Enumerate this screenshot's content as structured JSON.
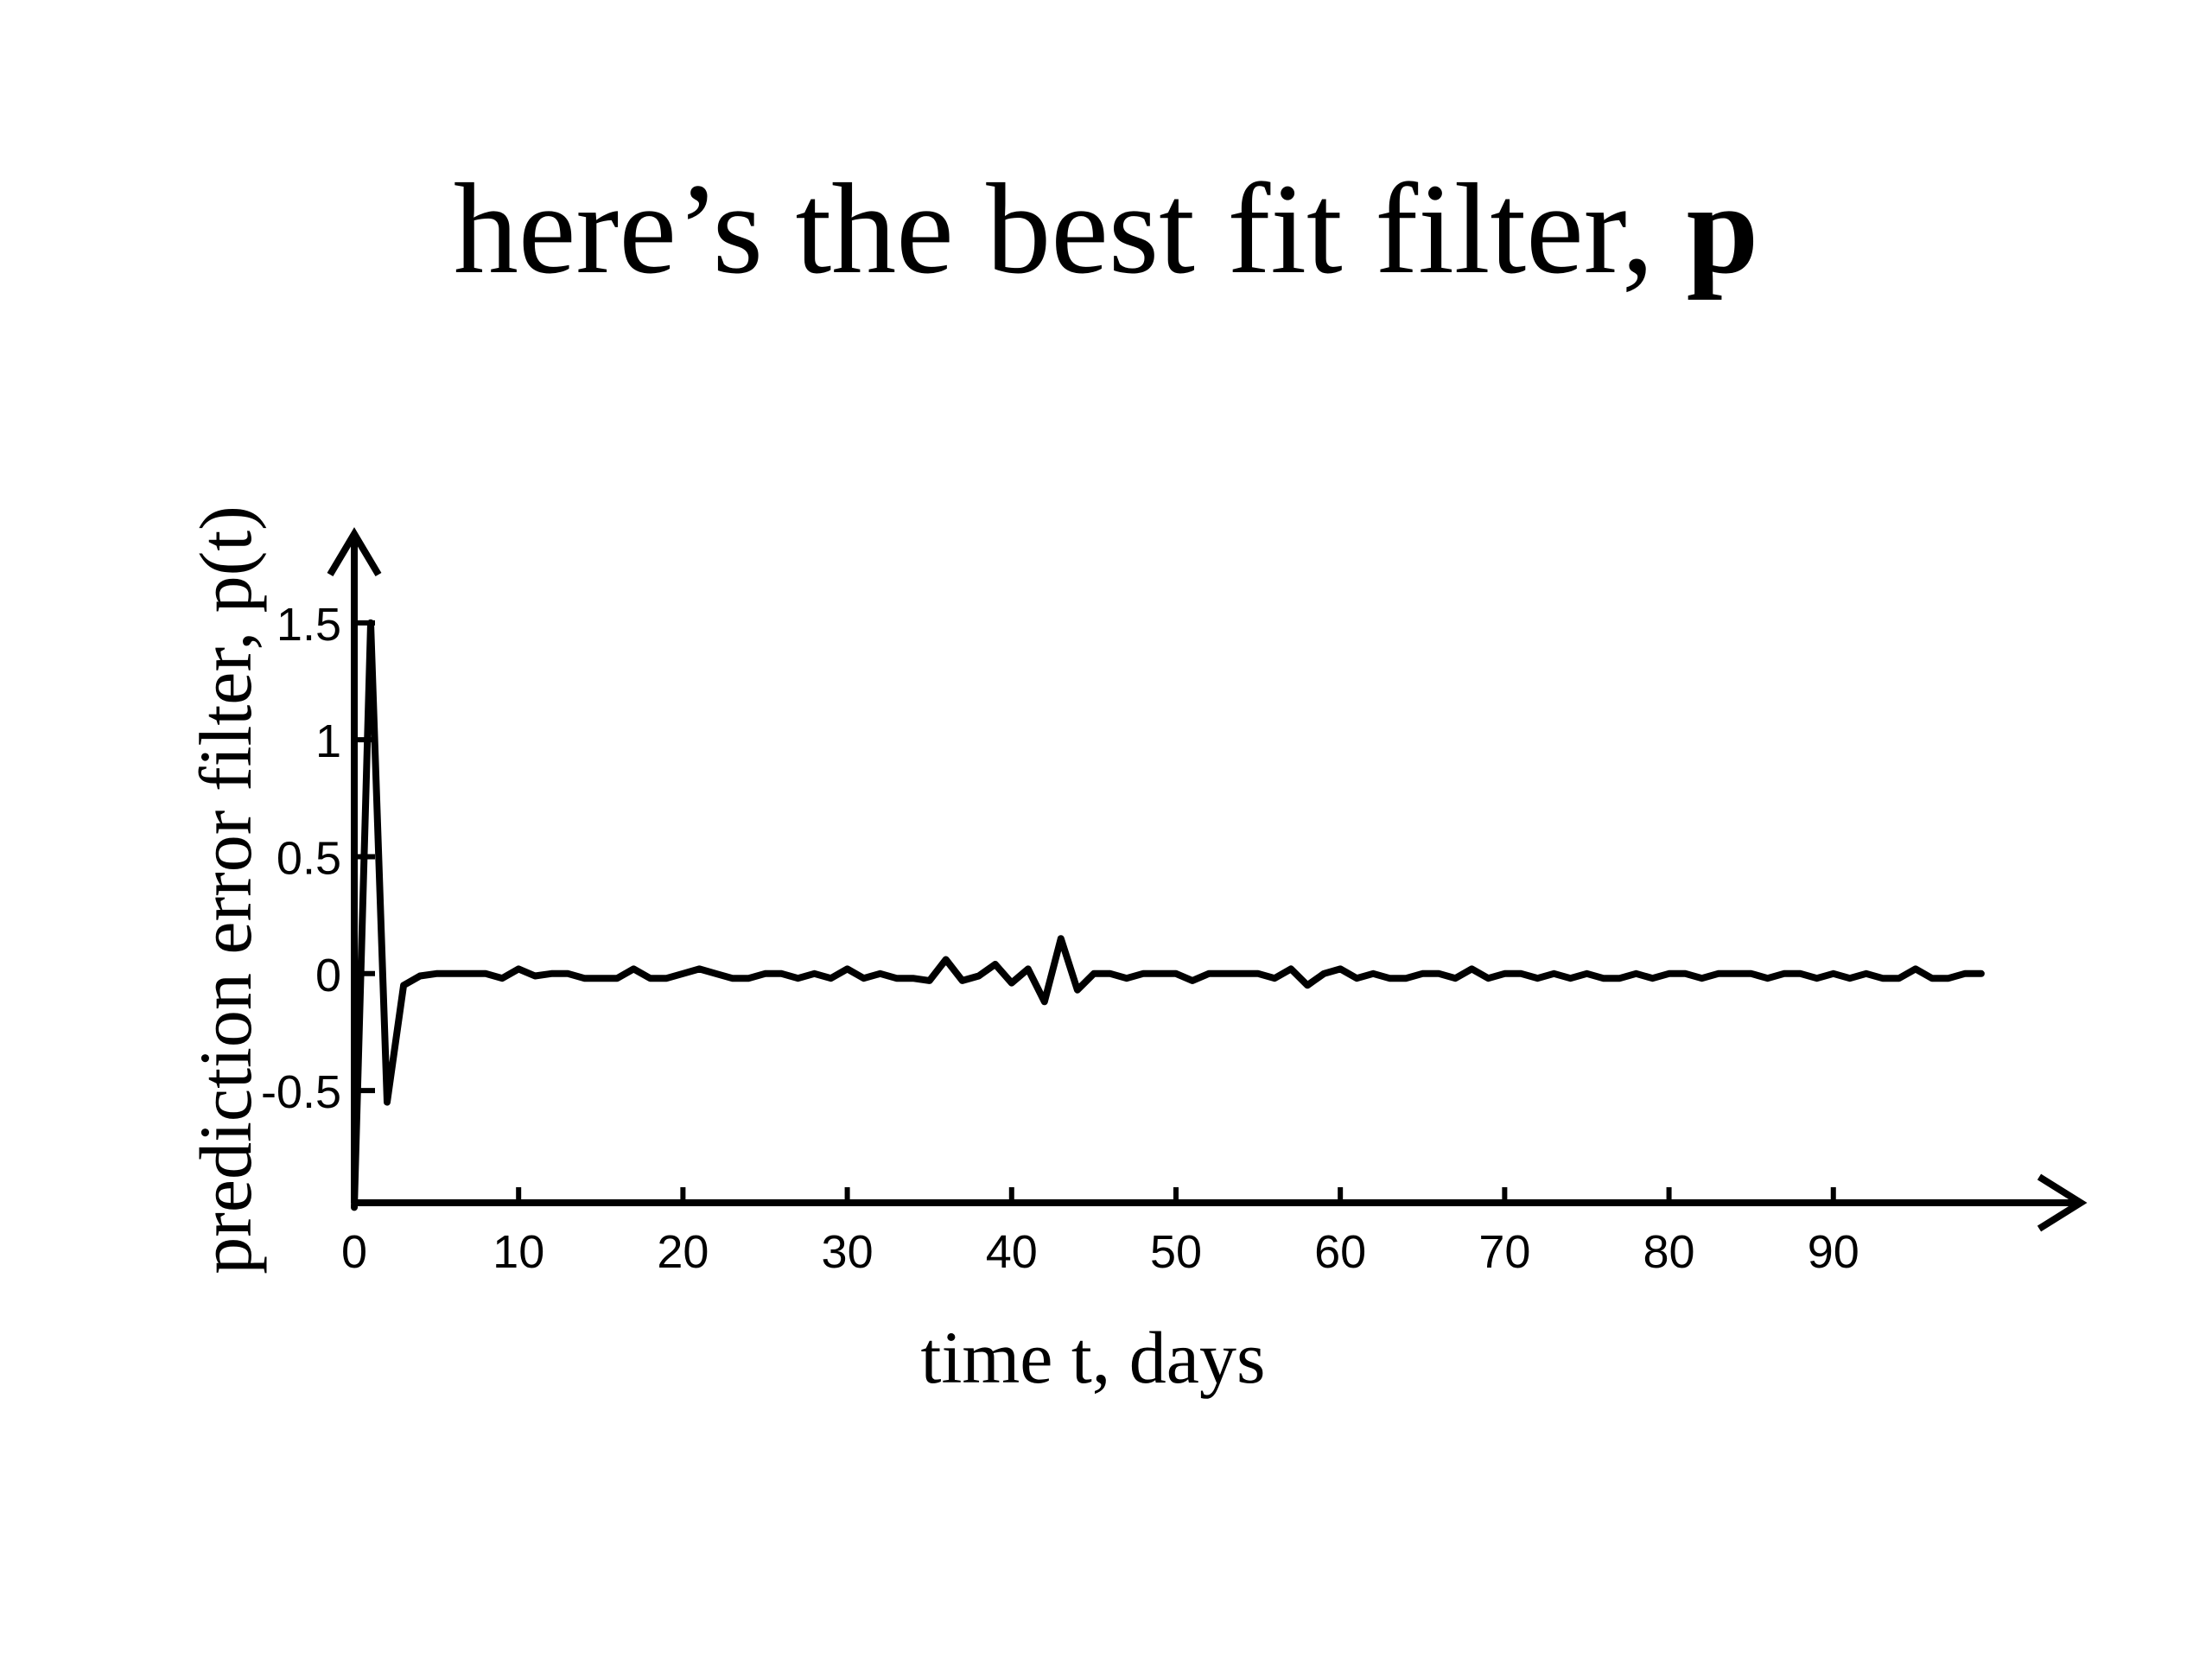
{
  "slide": {
    "title_main": "here’s the best fit filter, ",
    "title_bold": "p"
  },
  "chart_data": {
    "type": "line",
    "title": "here’s the best fit filter, p",
    "xlabel": "time t, days",
    "ylabel": "prediction error filter, p(t)",
    "xlim": [
      0,
      102
    ],
    "ylim": [
      -0.98,
      1.88
    ],
    "xticks": [
      0,
      10,
      20,
      30,
      40,
      50,
      60,
      70,
      80,
      90
    ],
    "yticks": [
      -0.5,
      0,
      0.5,
      1,
      1.5
    ],
    "xtick_labels": [
      "0",
      "10",
      "20",
      "30",
      "40",
      "50",
      "60",
      "70",
      "80",
      "90"
    ],
    "ytick_labels": [
      "-0.5",
      "0",
      "0.5",
      "1",
      "1.5"
    ],
    "grid": false,
    "line_color": "#000000",
    "series": [
      {
        "x": [
          0,
          1,
          2,
          3,
          4,
          5,
          6,
          7,
          8,
          9,
          10,
          11,
          12,
          13,
          14,
          15,
          16,
          17,
          18,
          19,
          20,
          21,
          22,
          23,
          24,
          25,
          26,
          27,
          28,
          29,
          30,
          31,
          32,
          33,
          34,
          35,
          36,
          37,
          38,
          39,
          40,
          41,
          42,
          43,
          44,
          45,
          46,
          47,
          48,
          49,
          50,
          51,
          52,
          53,
          54,
          55,
          56,
          57,
          58,
          59,
          60,
          61,
          62,
          63,
          64,
          65,
          66,
          67,
          68,
          69,
          70,
          71,
          72,
          73,
          74,
          75,
          76,
          77,
          78,
          79,
          80,
          81,
          82,
          83,
          84,
          85,
          86,
          87,
          88,
          89,
          90,
          91,
          92,
          93,
          94,
          95,
          96,
          97,
          98,
          99
        ],
        "values": [
          -1.0,
          1.5,
          -0.55,
          -0.05,
          -0.01,
          0.0,
          0.0,
          0.0,
          0.0,
          -0.02,
          0.02,
          -0.01,
          0.0,
          0.0,
          -0.02,
          -0.02,
          -0.02,
          0.02,
          -0.02,
          -0.02,
          0.0,
          0.02,
          0.0,
          -0.02,
          -0.02,
          0.0,
          0.0,
          -0.02,
          0.0,
          -0.02,
          0.02,
          -0.02,
          0.0,
          -0.02,
          -0.02,
          -0.03,
          0.06,
          -0.03,
          -0.01,
          0.04,
          -0.04,
          0.02,
          -0.12,
          0.15,
          -0.07,
          0.0,
          0.0,
          -0.02,
          0.0,
          0.0,
          0.0,
          -0.03,
          0.0,
          0.0,
          0.0,
          0.0,
          -0.02,
          0.02,
          -0.05,
          0.0,
          0.02,
          -0.02,
          0.0,
          -0.02,
          -0.02,
          0.0,
          0.0,
          -0.02,
          0.02,
          -0.02,
          0.0,
          0.0,
          -0.02,
          0.0,
          -0.02,
          0.0,
          -0.02,
          -0.02,
          0.0,
          -0.02,
          0.0,
          0.0,
          -0.02,
          0.0,
          0.0,
          0.0,
          -0.02,
          0.0,
          0.0,
          -0.02,
          0.0,
          -0.02,
          0.0,
          -0.02,
          -0.02,
          0.02,
          -0.02,
          -0.02,
          0.0,
          0.0
        ]
      }
    ]
  }
}
